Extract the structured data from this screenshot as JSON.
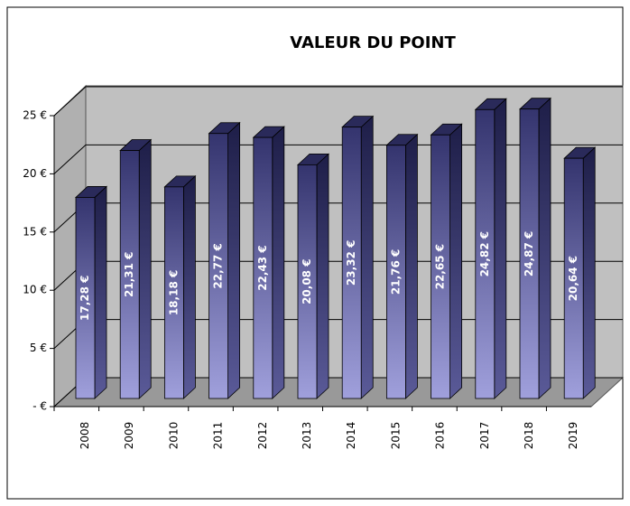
{
  "chart_data": {
    "type": "bar3d",
    "title": "VALEUR DU POINT",
    "categories": [
      "2008",
      "2009",
      "2010",
      "2011",
      "2012",
      "2013",
      "2014",
      "2015",
      "2016",
      "2017",
      "2018",
      "2019"
    ],
    "values": [
      17.28,
      21.31,
      18.18,
      22.77,
      22.43,
      20.08,
      23.32,
      21.76,
      22.65,
      24.82,
      24.87,
      20.64
    ],
    "value_labels": [
      "17,28 €",
      "21,31 €",
      "18,18 €",
      "22,77 €",
      "22,43 €",
      "20,08 €",
      "23,32 €",
      "21,76 €",
      "22,65 €",
      "24,82 €",
      "24,87 €",
      "20,64 €"
    ],
    "color": "#4a4a8c",
    "ylim": [
      0,
      25
    ],
    "yticks": [
      {
        "value": 0,
        "label": "- €"
      },
      {
        "value": 5,
        "label": "5 €"
      },
      {
        "value": 10,
        "label": "10 €"
      },
      {
        "value": 15,
        "label": "15 €"
      },
      {
        "value": 20,
        "label": "20 €"
      },
      {
        "value": 25,
        "label": "25 €"
      }
    ],
    "grid": true
  }
}
